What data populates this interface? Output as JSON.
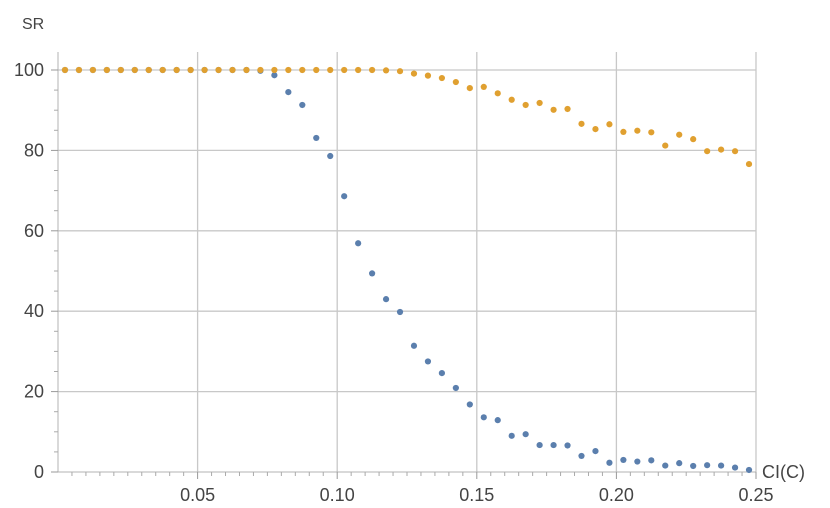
{
  "chart_data": {
    "type": "scatter",
    "xlabel": "CI(C)",
    "ylabel": "SR",
    "xlim": [
      0,
      0.25
    ],
    "ylim": [
      0,
      100
    ],
    "x_ticks": [
      "0.05",
      "0.10",
      "0.15",
      "0.20",
      "0.25"
    ],
    "y_ticks": [
      "0",
      "20",
      "40",
      "60",
      "80",
      "100"
    ],
    "grid": true,
    "series": [
      {
        "color": "#5b7fad",
        "points": [
          [
            0.0025,
            100
          ],
          [
            0.0075,
            100
          ],
          [
            0.0125,
            100
          ],
          [
            0.0175,
            100
          ],
          [
            0.0225,
            100
          ],
          [
            0.0275,
            100
          ],
          [
            0.0325,
            100
          ],
          [
            0.0375,
            100
          ],
          [
            0.0425,
            100
          ],
          [
            0.0475,
            100
          ],
          [
            0.0525,
            100
          ],
          [
            0.0575,
            100
          ],
          [
            0.0625,
            100
          ],
          [
            0.0675,
            100
          ],
          [
            0.0725,
            99.8
          ],
          [
            0.0775,
            98.7
          ],
          [
            0.0825,
            94.5
          ],
          [
            0.0875,
            91.3
          ],
          [
            0.0925,
            83.1
          ],
          [
            0.0975,
            78.6
          ],
          [
            0.1025,
            68.6
          ],
          [
            0.1075,
            56.9
          ],
          [
            0.1125,
            49.4
          ],
          [
            0.1175,
            43.0
          ],
          [
            0.1225,
            39.8
          ],
          [
            0.1275,
            31.4
          ],
          [
            0.1325,
            27.5
          ],
          [
            0.1375,
            24.6
          ],
          [
            0.1425,
            20.9
          ],
          [
            0.1475,
            16.8
          ],
          [
            0.1525,
            13.6
          ],
          [
            0.1575,
            12.9
          ],
          [
            0.1625,
            9.0
          ],
          [
            0.1675,
            9.4
          ],
          [
            0.1725,
            6.7
          ],
          [
            0.1775,
            6.7
          ],
          [
            0.1825,
            6.6
          ],
          [
            0.1875,
            4.0
          ],
          [
            0.1925,
            5.2
          ],
          [
            0.1975,
            2.3
          ],
          [
            0.2025,
            3.0
          ],
          [
            0.2075,
            2.6
          ],
          [
            0.2125,
            2.9
          ],
          [
            0.2175,
            1.6
          ],
          [
            0.2225,
            2.2
          ],
          [
            0.2275,
            1.5
          ],
          [
            0.2325,
            1.7
          ],
          [
            0.2375,
            1.6
          ],
          [
            0.2425,
            1.1
          ],
          [
            0.2475,
            0.5
          ]
        ]
      },
      {
        "color": "#e0a030",
        "points": [
          [
            0.0025,
            100
          ],
          [
            0.0075,
            100
          ],
          [
            0.0125,
            100
          ],
          [
            0.0175,
            100
          ],
          [
            0.0225,
            100
          ],
          [
            0.0275,
            100
          ],
          [
            0.0325,
            100
          ],
          [
            0.0375,
            100
          ],
          [
            0.0425,
            100
          ],
          [
            0.0475,
            100
          ],
          [
            0.0525,
            100
          ],
          [
            0.0575,
            100
          ],
          [
            0.0625,
            100
          ],
          [
            0.0675,
            100
          ],
          [
            0.0725,
            100
          ],
          [
            0.0775,
            100
          ],
          [
            0.0825,
            100
          ],
          [
            0.0875,
            100
          ],
          [
            0.0925,
            100
          ],
          [
            0.0975,
            100
          ],
          [
            0.1025,
            100
          ],
          [
            0.1075,
            100
          ],
          [
            0.1125,
            100
          ],
          [
            0.1175,
            99.9
          ],
          [
            0.1225,
            99.7
          ],
          [
            0.1275,
            99.1
          ],
          [
            0.1325,
            98.6
          ],
          [
            0.1375,
            98.0
          ],
          [
            0.1425,
            97.0
          ],
          [
            0.1475,
            95.5
          ],
          [
            0.1525,
            95.8
          ],
          [
            0.1575,
            94.2
          ],
          [
            0.1625,
            92.6
          ],
          [
            0.1675,
            91.3
          ],
          [
            0.1725,
            91.8
          ],
          [
            0.1775,
            90.1
          ],
          [
            0.1825,
            90.3
          ],
          [
            0.1875,
            86.6
          ],
          [
            0.1925,
            85.3
          ],
          [
            0.1975,
            86.5
          ],
          [
            0.2025,
            84.6
          ],
          [
            0.2075,
            84.9
          ],
          [
            0.2125,
            84.5
          ],
          [
            0.2175,
            81.2
          ],
          [
            0.2225,
            83.9
          ],
          [
            0.2275,
            82.8
          ],
          [
            0.2325,
            79.8
          ],
          [
            0.2375,
            80.2
          ],
          [
            0.2425,
            79.8
          ],
          [
            0.2475,
            76.6
          ]
        ]
      }
    ]
  }
}
